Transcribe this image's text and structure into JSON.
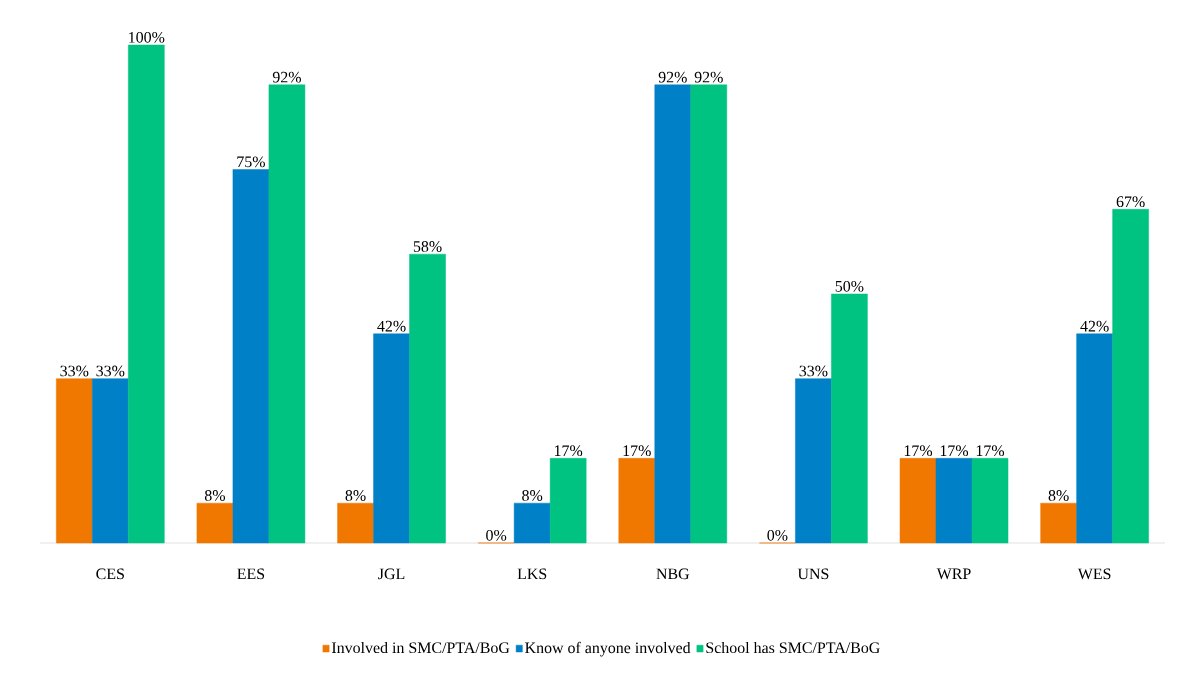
{
  "chart_data": {
    "type": "bar",
    "categories": [
      "CES",
      "EES",
      "JGL",
      "LKS",
      "NBG",
      "UNS",
      "WRP",
      "WES"
    ],
    "series": [
      {
        "name": "Involved in SMC/PTA/BoG",
        "color": "#f07800",
        "values": [
          33,
          8,
          8,
          0,
          17,
          0,
          17,
          8
        ],
        "value_labels": [
          "33%",
          "8%",
          "8%",
          "0%",
          "17%",
          "0%",
          "17%",
          "8%"
        ]
      },
      {
        "name": "Know of anyone involved",
        "color": "#0080c6",
        "values": [
          33,
          75,
          42,
          8,
          92,
          33,
          17,
          42
        ],
        "value_labels": [
          "33%",
          "75%",
          "42%",
          "8%",
          "92%",
          "33%",
          "17%",
          "42%"
        ]
      },
      {
        "name": "School has SMC/PTA/BoG",
        "color": "#00c281",
        "values": [
          100,
          92,
          58,
          17,
          92,
          50,
          17,
          67
        ],
        "value_labels": [
          "100%",
          "92%",
          "58%",
          "17%",
          "92%",
          "50%",
          "17%",
          "67%"
        ]
      }
    ],
    "legend": "bottom"
  }
}
